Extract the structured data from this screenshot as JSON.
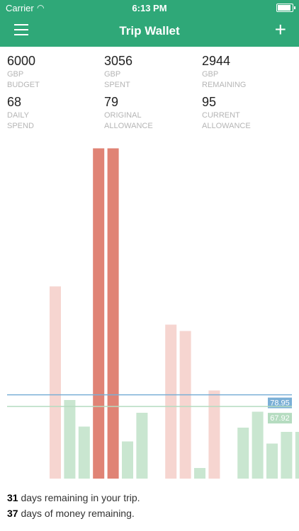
{
  "status_bar": {
    "carrier": "Carrier",
    "time": "6:13 PM",
    "battery_level": 0.9
  },
  "nav": {
    "title": "Trip Wallet",
    "add_icon": "plus-icon",
    "menu_icon": "hamburger-menu-icon"
  },
  "colors": {
    "header": "#2fa878",
    "bar_over": "#e08375",
    "bar_over_light": "#f6d5d0",
    "bar_under": "#c9e6d0",
    "line_current": "#7aafd6",
    "line_original": "#b5dcc0"
  },
  "stats": [
    {
      "value": "6000",
      "unit": "GBP",
      "label": "BUDGET"
    },
    {
      "value": "3056",
      "unit": "GBP",
      "label": "SPENT"
    },
    {
      "value": "2944",
      "unit": "GBP",
      "label": "REMAINING"
    },
    {
      "value": "68",
      "unit": "DAILY",
      "label": "SPEND"
    },
    {
      "value": "79",
      "unit": "ORIGINAL",
      "label": "ALLOWANCE"
    },
    {
      "value": "95",
      "unit": "CURRENT",
      "label": "ALLOWANCE"
    }
  ],
  "chart_data": {
    "type": "bar",
    "ylim": [
      0,
      300
    ],
    "values": [
      181,
      74,
      49,
      311,
      311,
      35,
      62,
      0,
      145,
      139,
      10,
      83,
      0,
      48,
      63,
      33,
      44,
      44
    ],
    "status": [
      "over_light",
      "under",
      "under",
      "over",
      "over",
      "under",
      "under",
      "none",
      "over_light",
      "over_light",
      "under",
      "over_light",
      "none",
      "under",
      "under",
      "under",
      "under",
      "under"
    ],
    "reference_lines": [
      {
        "label": "78.95",
        "value": 78.95,
        "style": "current"
      },
      {
        "label": "67.92",
        "value": 67.92,
        "style": "original"
      }
    ]
  },
  "footer": {
    "days_remaining_count": "31",
    "days_remaining_text": " days remaining in your trip.",
    "money_days_count": "37",
    "money_days_text": " days of money remaining."
  }
}
